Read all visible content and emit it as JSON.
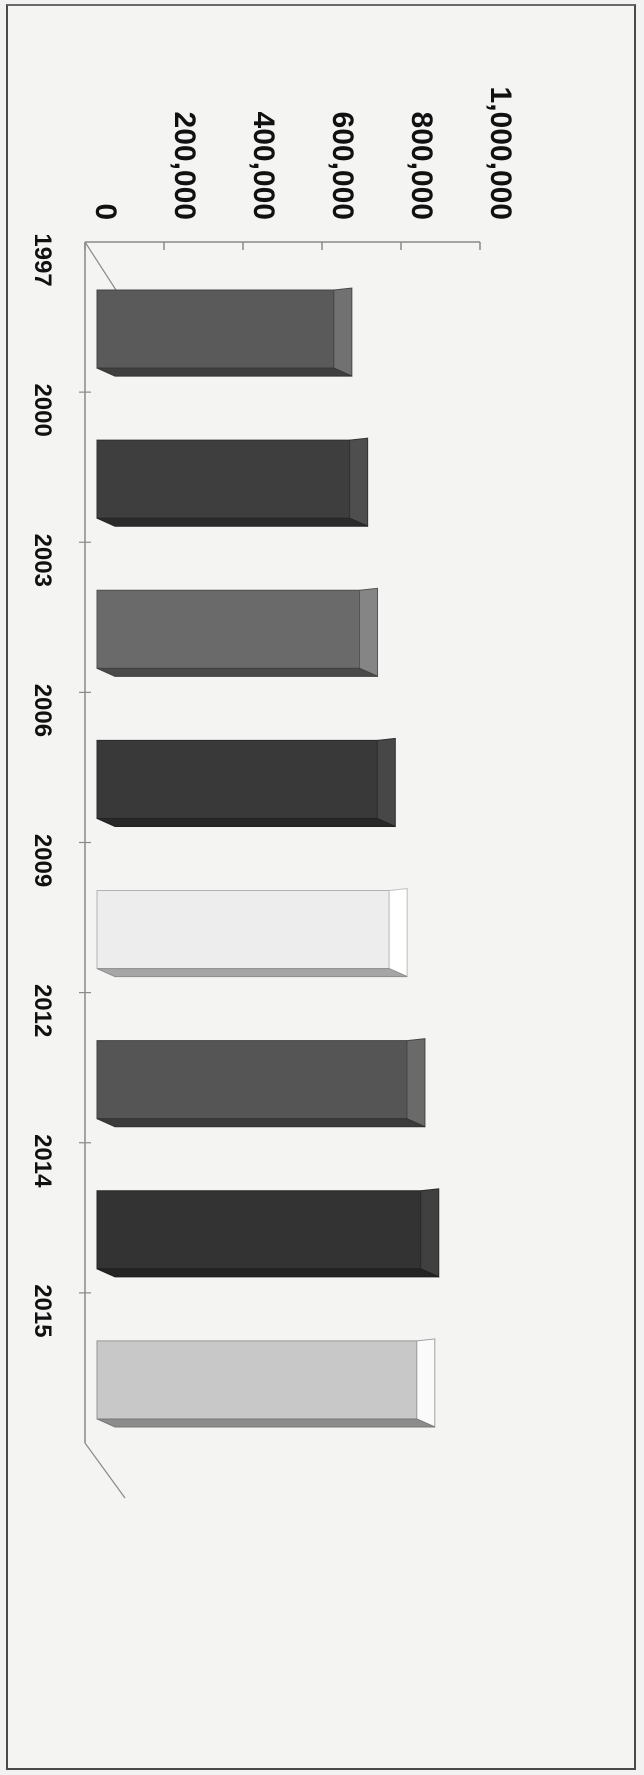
{
  "chart_data": {
    "type": "bar",
    "orientation": "horizontal-3d",
    "categories": [
      "1997",
      "2000",
      "2003",
      "2006",
      "2009",
      "2012",
      "2014",
      "2015"
    ],
    "values": [
      630000,
      670000,
      695000,
      740000,
      770000,
      815000,
      850000,
      840000
    ],
    "value_axis": {
      "ticks": [
        0,
        200000,
        400000,
        600000,
        800000,
        1000000
      ],
      "tick_labels": [
        "0",
        "200,000",
        "400,000",
        "600,000",
        "800,000",
        "1,000,000"
      ],
      "range": [
        0,
        1000000
      ]
    },
    "title": "",
    "xlabel": "",
    "ylabel": "",
    "grid": false,
    "legend": "none",
    "colors": [
      "#5a5a5a",
      "#3e3e3e",
      "#6a6a6a",
      "#393939",
      "#ededed",
      "#555555",
      "#333333",
      "#c8c8c8"
    ]
  }
}
